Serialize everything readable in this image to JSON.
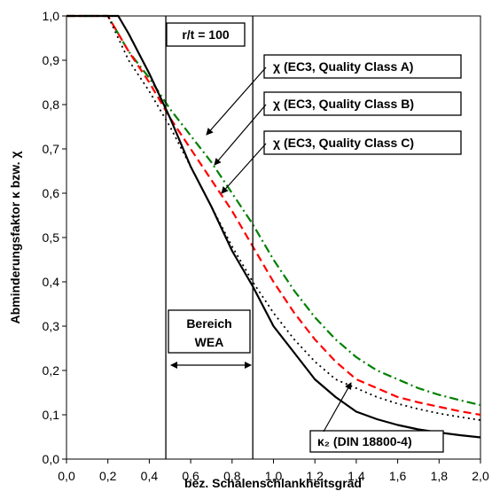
{
  "chart_data": {
    "type": "line",
    "title": "",
    "xlabel": "bez. Schalenschlankheitsgrad",
    "ylabel": "Abminderungsfaktor  κ bzw.  χ",
    "xlim": [
      0,
      2.0
    ],
    "ylim": [
      0,
      1.0
    ],
    "x_ticks": [
      "0,0",
      "0,2",
      "0,4",
      "0,6",
      "0,8",
      "1,0",
      "1,2",
      "1,4",
      "1,6",
      "1,8",
      "2,0"
    ],
    "y_ticks": [
      "0,0",
      "0,1",
      "0,2",
      "0,3",
      "0,4",
      "0,5",
      "0,6",
      "0,7",
      "0,8",
      "0,9",
      "1,0"
    ],
    "grid": false,
    "series": [
      {
        "name": "χ (EC3, Quality Class A)",
        "color": "#008000",
        "style": "dashdot",
        "points": [
          [
            0,
            1.0
          ],
          [
            0.2,
            1.0
          ],
          [
            0.25,
            0.96
          ],
          [
            0.3,
            0.92
          ],
          [
            0.4,
            0.86
          ],
          [
            0.5,
            0.79
          ],
          [
            0.6,
            0.73
          ],
          [
            0.7,
            0.67
          ],
          [
            0.8,
            0.6
          ],
          [
            0.9,
            0.53
          ],
          [
            1.0,
            0.45
          ],
          [
            1.1,
            0.38
          ],
          [
            1.2,
            0.32
          ],
          [
            1.3,
            0.27
          ],
          [
            1.4,
            0.23
          ],
          [
            1.5,
            0.2
          ],
          [
            1.6,
            0.18
          ],
          [
            1.7,
            0.16
          ],
          [
            1.8,
            0.145
          ],
          [
            1.9,
            0.133
          ],
          [
            2.0,
            0.122
          ]
        ]
      },
      {
        "name": "χ (EC3, Quality Class B)",
        "color": "#ff0000",
        "style": "dashed",
        "points": [
          [
            0,
            1.0
          ],
          [
            0.2,
            1.0
          ],
          [
            0.25,
            0.96
          ],
          [
            0.3,
            0.92
          ],
          [
            0.4,
            0.85
          ],
          [
            0.5,
            0.77
          ],
          [
            0.6,
            0.7
          ],
          [
            0.7,
            0.63
          ],
          [
            0.8,
            0.56
          ],
          [
            0.9,
            0.48
          ],
          [
            1.0,
            0.4
          ],
          [
            1.1,
            0.33
          ],
          [
            1.2,
            0.27
          ],
          [
            1.3,
            0.22
          ],
          [
            1.4,
            0.18
          ],
          [
            1.5,
            0.16
          ],
          [
            1.6,
            0.14
          ],
          [
            1.7,
            0.128
          ],
          [
            1.8,
            0.118
          ],
          [
            1.9,
            0.108
          ],
          [
            2.0,
            0.1
          ]
        ]
      },
      {
        "name": "χ (EC3, Quality Class C)",
        "color": "#000000",
        "style": "dotted",
        "points": [
          [
            0,
            1.0
          ],
          [
            0.2,
            1.0
          ],
          [
            0.25,
            0.95
          ],
          [
            0.3,
            0.9
          ],
          [
            0.4,
            0.83
          ],
          [
            0.5,
            0.75
          ],
          [
            0.6,
            0.66
          ],
          [
            0.7,
            0.57
          ],
          [
            0.8,
            0.48
          ],
          [
            0.9,
            0.4
          ],
          [
            1.0,
            0.33
          ],
          [
            1.1,
            0.27
          ],
          [
            1.2,
            0.22
          ],
          [
            1.3,
            0.18
          ],
          [
            1.4,
            0.16
          ],
          [
            1.5,
            0.14
          ],
          [
            1.6,
            0.125
          ],
          [
            1.7,
            0.113
          ],
          [
            1.8,
            0.103
          ],
          [
            1.9,
            0.095
          ],
          [
            2.0,
            0.088
          ]
        ]
      },
      {
        "name": "κ₂ (DIN 18800-4)",
        "color": "#000000",
        "style": "solid",
        "points": [
          [
            0,
            1.0
          ],
          [
            0.25,
            1.0
          ],
          [
            0.3,
            0.96
          ],
          [
            0.4,
            0.87
          ],
          [
            0.5,
            0.77
          ],
          [
            0.6,
            0.66
          ],
          [
            0.7,
            0.57
          ],
          [
            0.8,
            0.47
          ],
          [
            0.9,
            0.39
          ],
          [
            1.0,
            0.3
          ],
          [
            1.1,
            0.24
          ],
          [
            1.2,
            0.18
          ],
          [
            1.3,
            0.14
          ],
          [
            1.4,
            0.107
          ],
          [
            1.5,
            0.09
          ],
          [
            1.6,
            0.077
          ],
          [
            1.7,
            0.067
          ],
          [
            1.8,
            0.06
          ],
          [
            1.9,
            0.054
          ],
          [
            2.0,
            0.049
          ]
        ]
      }
    ],
    "vlines": [
      0.48,
      0.9
    ],
    "annotations": {
      "rt_label": "r/t = 100",
      "region_label_1": "Bereich",
      "region_label_2": "WEA",
      "label_a": "χ (EC3, Quality Class A)",
      "label_b": "χ (EC3, Quality Class B)",
      "label_c": "χ (EC3, Quality Class C)",
      "label_k2": "κ₂ (DIN 18800-4)"
    }
  }
}
